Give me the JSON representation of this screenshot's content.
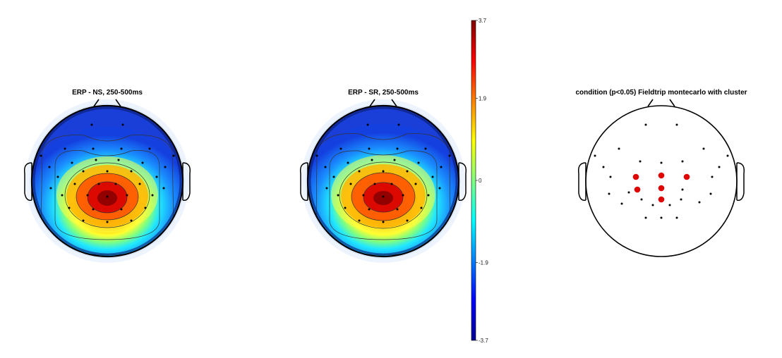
{
  "chart_data": [
    {
      "type": "heatmap",
      "title": "ERP - NS, 250-500ms",
      "peak_value": 3.7,
      "peak_location": "central",
      "electrodes": [
        [
          -0.22,
          -0.8
        ],
        [
          0.22,
          -0.8
        ],
        [
          -0.94,
          -0.36
        ],
        [
          -0.6,
          -0.46
        ],
        [
          -0.2,
          -0.46
        ],
        [
          0.2,
          -0.46
        ],
        [
          0.6,
          -0.46
        ],
        [
          0.94,
          -0.36
        ],
        [
          -0.82,
          -0.2
        ],
        [
          -0.5,
          -0.26
        ],
        [
          -0.16,
          -0.3
        ],
        [
          0.16,
          -0.3
        ],
        [
          0.5,
          -0.26
        ],
        [
          0.82,
          -0.2
        ],
        [
          -0.7,
          -0.06
        ],
        [
          -0.34,
          -0.14
        ],
        [
          0.0,
          -0.14
        ],
        [
          0.34,
          -0.14
        ],
        [
          0.7,
          -0.06
        ],
        [
          -0.8,
          0.1
        ],
        [
          -0.46,
          0.04
        ],
        [
          -0.12,
          0.04
        ],
        [
          0.12,
          0.04
        ],
        [
          0.46,
          0.04
        ],
        [
          0.8,
          0.1
        ],
        [
          -0.64,
          0.2
        ],
        [
          -0.28,
          0.2
        ],
        [
          0.0,
          0.22
        ],
        [
          0.28,
          0.2
        ],
        [
          0.64,
          0.2
        ],
        [
          -0.54,
          0.38
        ],
        [
          -0.2,
          0.4
        ],
        [
          0.2,
          0.4
        ],
        [
          0.54,
          0.38
        ],
        [
          -0.34,
          0.56
        ],
        [
          0.0,
          0.58
        ],
        [
          0.34,
          0.56
        ]
      ]
    },
    {
      "type": "heatmap",
      "title": "ERP - SR, 250-500ms",
      "peak_value": 3.7,
      "peak_location": "central",
      "electrodes": [
        [
          -0.22,
          -0.8
        ],
        [
          0.22,
          -0.8
        ],
        [
          -0.94,
          -0.36
        ],
        [
          -0.6,
          -0.46
        ],
        [
          -0.2,
          -0.46
        ],
        [
          0.2,
          -0.46
        ],
        [
          0.6,
          -0.46
        ],
        [
          0.94,
          -0.36
        ],
        [
          -0.82,
          -0.2
        ],
        [
          -0.5,
          -0.26
        ],
        [
          -0.16,
          -0.3
        ],
        [
          0.16,
          -0.3
        ],
        [
          0.5,
          -0.26
        ],
        [
          0.82,
          -0.2
        ],
        [
          -0.7,
          -0.06
        ],
        [
          -0.34,
          -0.14
        ],
        [
          0.0,
          -0.14
        ],
        [
          0.34,
          -0.14
        ],
        [
          0.7,
          -0.06
        ],
        [
          -0.8,
          0.1
        ],
        [
          -0.46,
          0.04
        ],
        [
          -0.12,
          0.04
        ],
        [
          0.12,
          0.04
        ],
        [
          0.46,
          0.04
        ],
        [
          0.8,
          0.1
        ],
        [
          -0.64,
          0.2
        ],
        [
          -0.28,
          0.2
        ],
        [
          0.0,
          0.22
        ],
        [
          0.28,
          0.2
        ],
        [
          0.64,
          0.2
        ],
        [
          -0.54,
          0.38
        ],
        [
          -0.2,
          0.4
        ],
        [
          0.2,
          0.4
        ],
        [
          0.54,
          0.38
        ],
        [
          -0.34,
          0.56
        ],
        [
          0.0,
          0.58
        ],
        [
          0.34,
          0.56
        ]
      ]
    },
    {
      "type": "scatter",
      "title": "condition (p<0.05) Fieldtrip montecarlo with cluster",
      "significance_threshold": 0.05,
      "electrodes": [
        [
          -0.22,
          -0.8
        ],
        [
          0.22,
          -0.8
        ],
        [
          -0.94,
          -0.36
        ],
        [
          -0.6,
          -0.46
        ],
        [
          0.6,
          -0.46
        ],
        [
          0.94,
          -0.36
        ],
        [
          -0.82,
          -0.2
        ],
        [
          -0.3,
          -0.28
        ],
        [
          0.0,
          -0.26
        ],
        [
          0.3,
          -0.28
        ],
        [
          0.82,
          -0.2
        ],
        [
          -0.72,
          -0.06
        ],
        [
          -0.36,
          -0.06
        ],
        [
          0.0,
          -0.08
        ],
        [
          0.36,
          -0.06
        ],
        [
          0.72,
          -0.06
        ],
        [
          -0.74,
          0.18
        ],
        [
          -0.46,
          0.16
        ],
        [
          -0.32,
          0.1
        ],
        [
          0.0,
          0.1
        ],
        [
          0.3,
          0.12
        ],
        [
          0.7,
          0.18
        ],
        [
          -0.56,
          0.32
        ],
        [
          -0.28,
          0.26
        ],
        [
          0.28,
          0.26
        ],
        [
          0.54,
          0.3
        ],
        [
          -0.12,
          0.34
        ],
        [
          0.12,
          0.34
        ],
        [
          -0.22,
          0.52
        ],
        [
          0.0,
          0.52
        ],
        [
          0.22,
          0.52
        ]
      ],
      "significant_electrodes": [
        [
          -0.36,
          -0.06
        ],
        [
          0.0,
          -0.08
        ],
        [
          0.36,
          -0.06
        ],
        [
          -0.34,
          0.12
        ],
        [
          0.0,
          0.1
        ],
        [
          0.0,
          0.26
        ]
      ]
    }
  ],
  "colorbar": {
    "min": -3.7,
    "max": 3.7,
    "ticks": [
      3.7,
      1.9,
      0,
      -1.9,
      -3.7
    ],
    "tick_labels": [
      "3.7",
      "1.9",
      "0",
      "-1.9",
      "-3.7"
    ],
    "colormap": "jet"
  },
  "colors": {
    "head_outline": "#000000",
    "significant_marker": "#e00000",
    "electrode_marker": "#000000"
  }
}
